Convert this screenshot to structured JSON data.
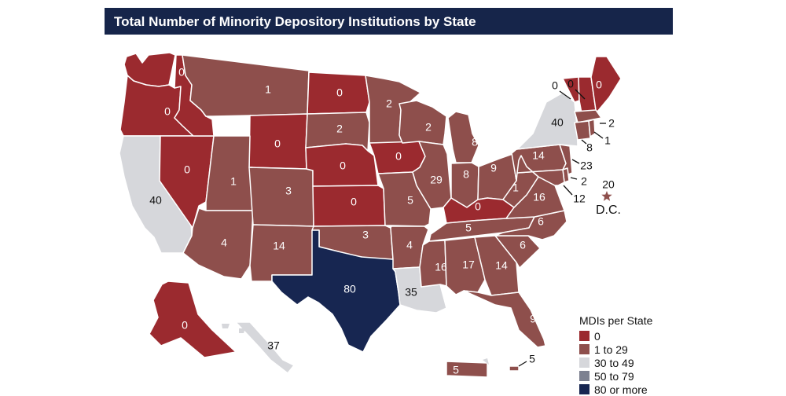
{
  "title": "Total Number of Minority Depository Institutions by State",
  "colors": {
    "zero": "#9b2a2f",
    "low": "#8e4f4c",
    "mid": "#d6d7db",
    "high": "#7d8191",
    "top": "#172651",
    "border": "#ffffff"
  },
  "legend": {
    "title": "MDIs per State",
    "items": [
      {
        "label": "0",
        "color": "#9b2a2f"
      },
      {
        "label": "1 to 29",
        "color": "#8e4f4c"
      },
      {
        "label": "30 to 49",
        "color": "#d6d7db"
      },
      {
        "label": "50 to 79",
        "color": "#7d8191"
      },
      {
        "label": "80 or more",
        "color": "#172651"
      }
    ]
  },
  "states": {
    "WA": "0",
    "OR": "0",
    "CA": "40",
    "NV": "0",
    "ID": "0",
    "MT": "1",
    "WY": "0",
    "UT": "1",
    "AZ": "4",
    "CO": "3",
    "NM": "14",
    "ND": "0",
    "SD": "2",
    "NE": "0",
    "KS": "0",
    "OK": "3",
    "TX": "80",
    "MN": "2",
    "IA": "0",
    "MO": "5",
    "AR": "4",
    "LA": "35",
    "WI": "2",
    "IL": "29",
    "MI": "8",
    "IN": "8",
    "OH": "9",
    "KY": "0",
    "TN": "5",
    "MS": "16",
    "AL": "17",
    "GA": "14",
    "FL": "9",
    "SC": "6",
    "NC": "6",
    "VA": "16",
    "WV": "1",
    "PA": "14",
    "NY": "40",
    "VT": "0",
    "NH": "0",
    "ME": "0",
    "MA": "2",
    "CT": "8",
    "RI": "1",
    "NJ": "23",
    "DE": "2",
    "MD": "12",
    "AK": "0",
    "HI": "37",
    "PR": "5",
    "VI": "5"
  },
  "dc": {
    "value": "20",
    "label": "D.C."
  }
}
